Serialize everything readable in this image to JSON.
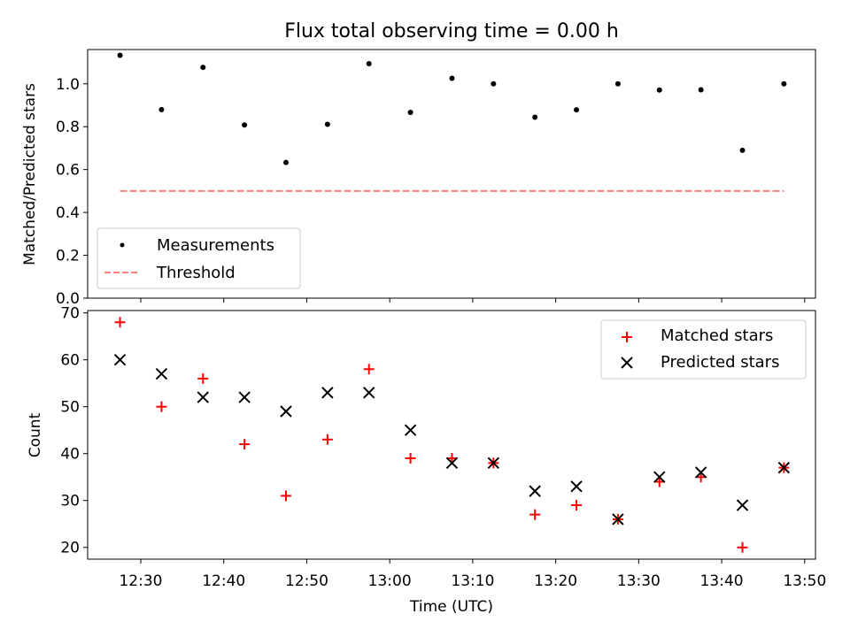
{
  "chart_data": [
    {
      "type": "scatter",
      "title": "Flux total observing time = 0.00 h",
      "ylabel": "Matched/Predicted stars",
      "ylim": [
        0.0,
        1.16
      ],
      "yticks": [
        "0.0",
        "0.2",
        "0.4",
        "0.6",
        "0.8",
        "1.0"
      ],
      "legend_position": "lower-left",
      "x": [
        "12:27",
        "12:32",
        "12:37",
        "12:42",
        "12:47",
        "12:52",
        "12:57",
        "13:02",
        "13:07",
        "13:12",
        "13:17",
        "13:22",
        "13:27",
        "13:32",
        "13:37",
        "13:42",
        "13:47"
      ],
      "series": [
        {
          "name": "Measurements",
          "marker": "dot",
          "color": "#000000",
          "values": [
            1.133,
            0.88,
            1.077,
            0.808,
            0.633,
            0.811,
            1.094,
            0.867,
            1.026,
            1.0,
            0.844,
            0.879,
            1.0,
            0.971,
            0.972,
            0.69,
            1.0
          ]
        },
        {
          "name": "Threshold",
          "style": "dashed-line",
          "color": "#ff7f7f",
          "values": [
            0.5,
            0.5
          ]
        }
      ]
    },
    {
      "type": "scatter",
      "ylabel": "Count",
      "xlabel": "Time (UTC)",
      "ylim": [
        17.5,
        70.5
      ],
      "yticks": [
        "20",
        "30",
        "40",
        "50",
        "60",
        "70"
      ],
      "xticks": [
        "12:30",
        "12:40",
        "12:50",
        "13:00",
        "13:10",
        "13:20",
        "13:30",
        "13:40",
        "13:50"
      ],
      "legend_position": "upper-right",
      "series": [
        {
          "name": "Matched stars",
          "marker": "plus",
          "color": "#ff0000",
          "values": [
            68,
            50,
            56,
            42,
            31,
            43,
            58,
            39,
            39,
            38,
            27,
            29,
            26,
            34,
            35,
            20,
            37
          ]
        },
        {
          "name": "Predicted stars",
          "marker": "x",
          "color": "#000000",
          "values": [
            60,
            57,
            52,
            52,
            49,
            53,
            53,
            45,
            38,
            38,
            32,
            33,
            26,
            35,
            36,
            29,
            37
          ]
        }
      ]
    }
  ]
}
